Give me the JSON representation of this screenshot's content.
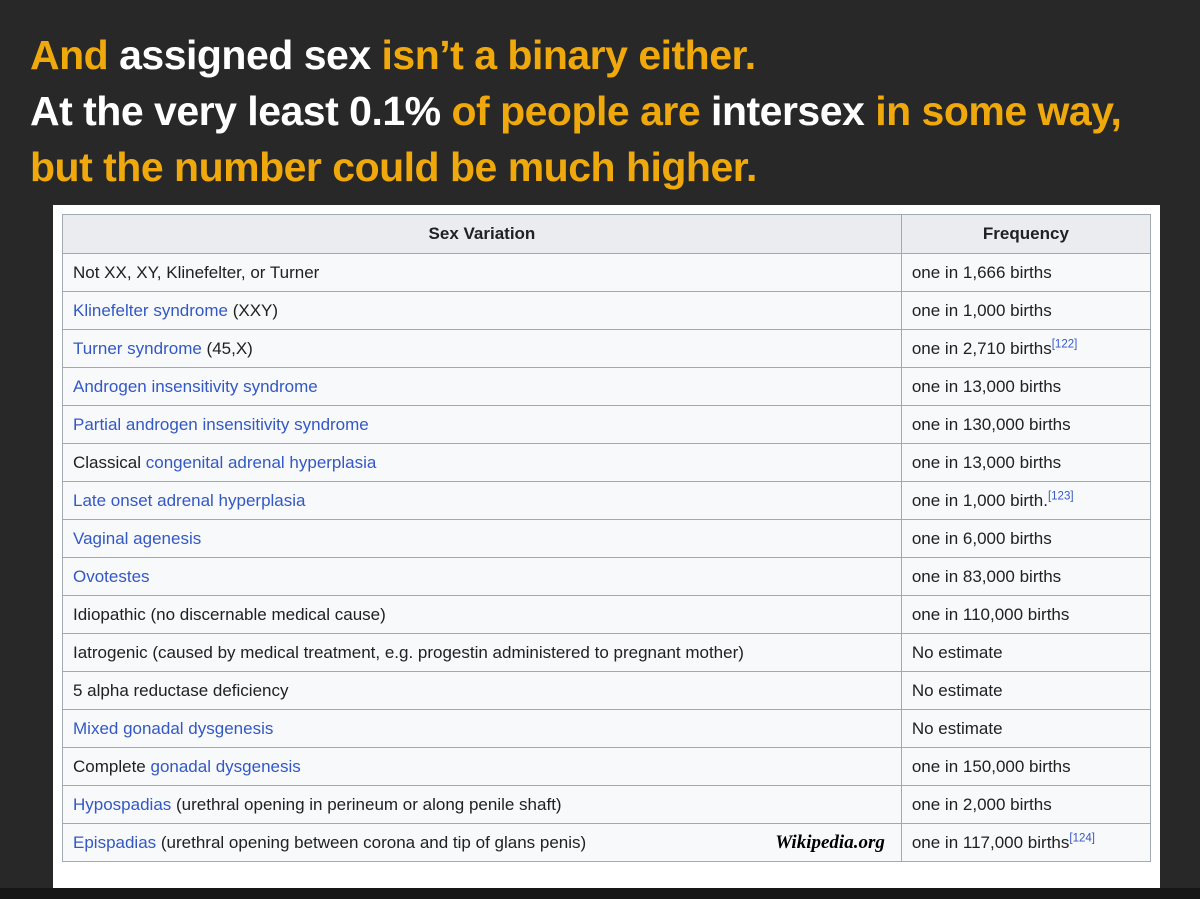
{
  "colors": {
    "bg": "#282828",
    "strip": "#161616",
    "gold": "#F0A90C",
    "white": "#FFFFFF",
    "link": "#3358C4",
    "text": "#202122",
    "border": "#a2a9b1",
    "headerbg": "#eaecf0",
    "cellbg": "#f8f9fa"
  },
  "slide": {
    "title_lines": [
      {
        "segments": [
          {
            "text": "And ",
            "color": "gold"
          },
          {
            "text": "assigned sex ",
            "color": "white"
          },
          {
            "text": "isn’t a binary either.",
            "color": "gold"
          }
        ]
      },
      {
        "segments": [
          {
            "text": "At the very least 0.1% ",
            "color": "white"
          },
          {
            "text": "of people are ",
            "color": "gold"
          },
          {
            "text": "intersex ",
            "color": "white"
          },
          {
            "text": "in some way,",
            "color": "gold"
          }
        ]
      },
      {
        "segments": [
          {
            "text": "but the number could be much higher.",
            "color": "gold"
          }
        ]
      }
    ]
  },
  "table": {
    "headers": [
      "Sex Variation",
      "Frequency"
    ],
    "attribution": "Wikipedia.org",
    "rows": [
      {
        "variation": [
          {
            "text": "Not XX, XY, Klinefelter, or Turner",
            "link": false
          }
        ],
        "frequency": "one in 1,666 births",
        "ref": ""
      },
      {
        "variation": [
          {
            "text": "Klinefelter syndrome",
            "link": true
          },
          {
            "text": " (XXY)",
            "link": false
          }
        ],
        "frequency": "one in 1,000 births",
        "ref": ""
      },
      {
        "variation": [
          {
            "text": "Turner syndrome",
            "link": true
          },
          {
            "text": " (45,X)",
            "link": false
          }
        ],
        "frequency": "one in 2,710 births",
        "ref": "[122]"
      },
      {
        "variation": [
          {
            "text": "Androgen insensitivity syndrome",
            "link": true
          }
        ],
        "frequency": "one in 13,000 births",
        "ref": ""
      },
      {
        "variation": [
          {
            "text": "Partial androgen insensitivity syndrome",
            "link": true
          }
        ],
        "frequency": "one in 130,000 births",
        "ref": ""
      },
      {
        "variation": [
          {
            "text": "Classical ",
            "link": false
          },
          {
            "text": "congenital adrenal hyperplasia",
            "link": true
          }
        ],
        "frequency": "one in 13,000 births",
        "ref": ""
      },
      {
        "variation": [
          {
            "text": "Late onset adrenal hyperplasia",
            "link": true
          }
        ],
        "frequency": "one in 1,000 birth.",
        "ref": "[123]"
      },
      {
        "variation": [
          {
            "text": "Vaginal agenesis",
            "link": true
          }
        ],
        "frequency": "one in 6,000 births",
        "ref": ""
      },
      {
        "variation": [
          {
            "text": "Ovotestes",
            "link": true
          }
        ],
        "frequency": "one in 83,000 births",
        "ref": ""
      },
      {
        "variation": [
          {
            "text": "Idiopathic (no discernable medical cause)",
            "link": false
          }
        ],
        "frequency": "one in 110,000 births",
        "ref": ""
      },
      {
        "variation": [
          {
            "text": "Iatrogenic (caused by medical treatment, e.g. progestin administered to pregnant mother)",
            "link": false
          }
        ],
        "frequency": "No estimate",
        "ref": ""
      },
      {
        "variation": [
          {
            "text": "5 alpha reductase deficiency",
            "link": false
          }
        ],
        "frequency": "No estimate",
        "ref": ""
      },
      {
        "variation": [
          {
            "text": "Mixed gonadal dysgenesis",
            "link": true
          }
        ],
        "frequency": "No estimate",
        "ref": ""
      },
      {
        "variation": [
          {
            "text": "Complete ",
            "link": false
          },
          {
            "text": "gonadal dysgenesis",
            "link": true
          }
        ],
        "frequency": "one in 150,000 births",
        "ref": ""
      },
      {
        "variation": [
          {
            "text": "Hypospadias",
            "link": true
          },
          {
            "text": " (urethral opening in perineum or along penile shaft)",
            "link": false
          }
        ],
        "frequency": "one in 2,000 births",
        "ref": ""
      },
      {
        "variation": [
          {
            "text": "Epispadias",
            "link": true
          },
          {
            "text": " (urethral opening between corona and tip of glans penis)",
            "link": false
          }
        ],
        "frequency": "one in 117,000 births",
        "ref": "[124]",
        "attribution": true
      }
    ]
  }
}
